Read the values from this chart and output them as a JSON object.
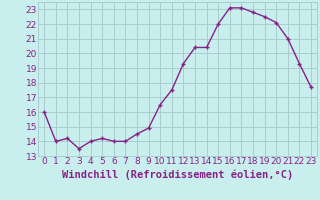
{
  "x": [
    0,
    1,
    2,
    3,
    4,
    5,
    6,
    7,
    8,
    9,
    10,
    11,
    12,
    13,
    14,
    15,
    16,
    17,
    18,
    19,
    20,
    21,
    22,
    23
  ],
  "y": [
    16.0,
    14.0,
    14.2,
    13.5,
    14.0,
    14.2,
    14.0,
    14.0,
    14.5,
    14.9,
    16.5,
    17.5,
    19.3,
    20.4,
    20.4,
    22.0,
    23.1,
    23.1,
    22.8,
    22.5,
    22.1,
    21.0,
    19.3,
    17.7
  ],
  "line_color": "#882288",
  "marker": "+",
  "bg_color": "#c8eeee",
  "grid_color": "#aacccc",
  "xlabel": "Windchill (Refroidissement éolien,°C)",
  "ylim": [
    13,
    23.5
  ],
  "xlim": [
    -0.5,
    23.5
  ],
  "yticks": [
    13,
    14,
    15,
    16,
    17,
    18,
    19,
    20,
    21,
    22,
    23
  ],
  "xticks": [
    0,
    1,
    2,
    3,
    4,
    5,
    6,
    7,
    8,
    9,
    10,
    11,
    12,
    13,
    14,
    15,
    16,
    17,
    18,
    19,
    20,
    21,
    22,
    23
  ],
  "tick_color": "#882288",
  "label_color": "#882288",
  "font_size": 6.5,
  "xlabel_fontsize": 7.5,
  "lw": 1.0,
  "markersize": 3.5
}
